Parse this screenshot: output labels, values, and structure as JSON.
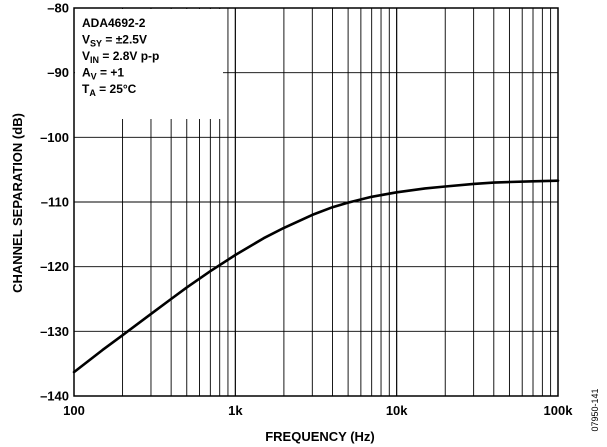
{
  "chart_data": {
    "type": "line",
    "xlabel": "FREQUENCY (Hz)",
    "ylabel": "CHANNEL SEPARATION (dB)",
    "xscale": "log",
    "xlim": [
      100,
      100000
    ],
    "ylim": [
      -140,
      -80
    ],
    "grid": true,
    "xticks": [
      {
        "value": 100,
        "label": "100"
      },
      {
        "value": 1000,
        "label": "1k"
      },
      {
        "value": 10000,
        "label": "10k"
      },
      {
        "value": 100000,
        "label": "100k"
      }
    ],
    "yticks": [
      {
        "value": -80,
        "label": "–80"
      },
      {
        "value": -90,
        "label": "–90"
      },
      {
        "value": -100,
        "label": "–100"
      },
      {
        "value": -110,
        "label": "–110"
      },
      {
        "value": -120,
        "label": "–120"
      },
      {
        "value": -130,
        "label": "–130"
      },
      {
        "value": -140,
        "label": "–140"
      }
    ],
    "series": [
      {
        "x": [
          100,
          150,
          200,
          300,
          400,
          500,
          700,
          1000,
          1500,
          2000,
          3000,
          4000,
          5000,
          7000,
          10000,
          15000,
          20000,
          30000,
          40000,
          50000,
          70000,
          100000
        ],
        "y": [
          -136.3,
          -132.9,
          -130.6,
          -127.3,
          -125.0,
          -123.2,
          -120.7,
          -118.2,
          -115.6,
          -114.0,
          -112.0,
          -110.8,
          -110.1,
          -109.2,
          -108.5,
          -107.9,
          -107.6,
          -107.2,
          -107.0,
          -106.9,
          -106.8,
          -106.7
        ]
      }
    ],
    "annotation": {
      "lines": [
        {
          "main": "ADA4692-2",
          "sub": "",
          "rest": ""
        },
        {
          "main": "V",
          "sub": "SY",
          "rest": " = ±2.5V"
        },
        {
          "main": "V",
          "sub": "IN",
          "rest": " = 2.8V p-p"
        },
        {
          "main": "A",
          "sub": "V",
          "rest": " = +1"
        },
        {
          "main": "T",
          "sub": "A",
          "rest": " = 25°C"
        }
      ]
    },
    "figure_id": "07950-141"
  },
  "colors": {
    "curve": "#000000",
    "grid": "#000000",
    "background": "#ffffff"
  }
}
